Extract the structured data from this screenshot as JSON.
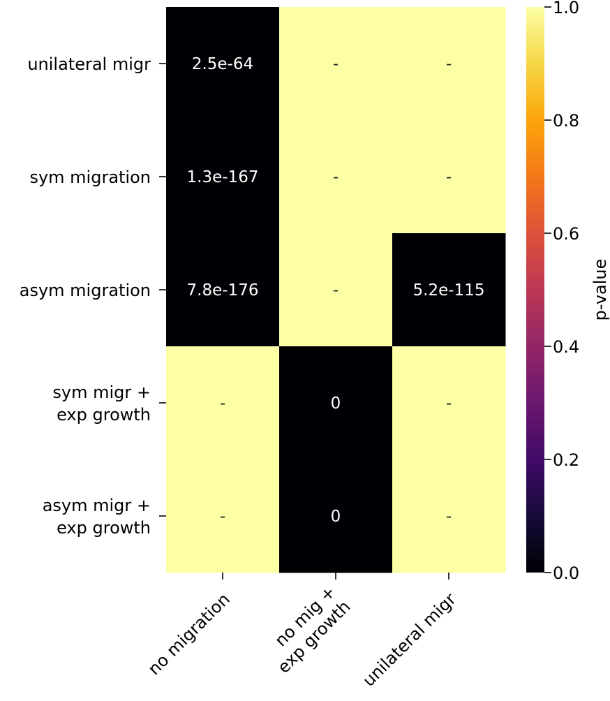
{
  "chart_data": {
    "type": "heatmap",
    "title": "",
    "xlabel": "",
    "ylabel": "",
    "x_categories": [
      "no migration",
      "no mig +\nexp growth",
      "unilateral migr"
    ],
    "y_categories": [
      "unilateral migr",
      "sym migration",
      "asym migration",
      "sym migr +\nexp growth",
      "asym migr +\nexp growth"
    ],
    "values": [
      [
        2.5e-64,
        1.0,
        1.0
      ],
      [
        1.3e-167,
        1.0,
        1.0
      ],
      [
        7.8e-176,
        1.0,
        5.2e-115
      ],
      [
        1.0,
        0,
        1.0
      ],
      [
        1.0,
        0,
        1.0
      ]
    ],
    "annotations": [
      [
        "2.5e-64",
        "-",
        "-"
      ],
      [
        "1.3e-167",
        "-",
        "-"
      ],
      [
        "7.8e-176",
        "-",
        "5.2e-115"
      ],
      [
        "-",
        "0",
        "-"
      ],
      [
        "-",
        "0",
        "-"
      ]
    ],
    "colorbar": {
      "label": "p-value",
      "range": [
        0.0,
        1.0
      ],
      "ticks": [
        "0.0",
        "0.2",
        "0.4",
        "0.6",
        "0.8",
        "1.0"
      ],
      "colormap": "inferno"
    },
    "colors": {
      "low": "#000004",
      "high": "#fcffa4",
      "annotation_on_dark": "#ffffff",
      "annotation_on_light": "#262626"
    }
  }
}
